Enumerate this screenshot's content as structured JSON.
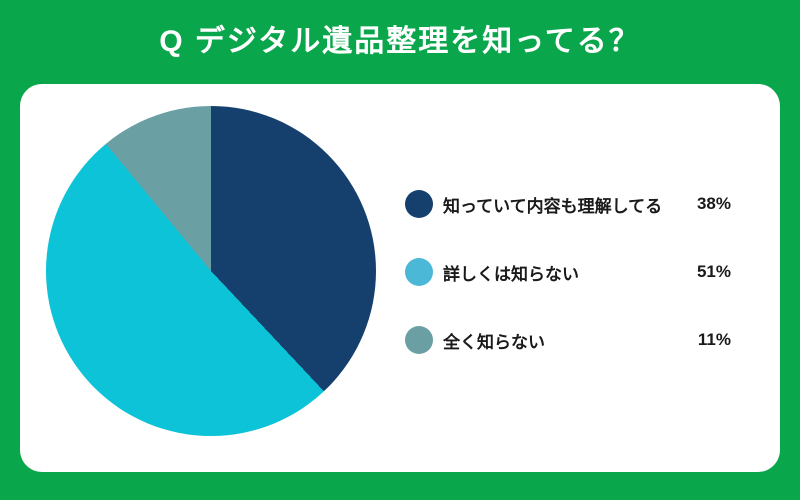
{
  "header": {
    "title": "Q デジタル遺品整理を知ってる？",
    "bg_color": "#0aa64b",
    "text_color": "#ffffff"
  },
  "card": {
    "bg_color": "#ffffff"
  },
  "chart_data": {
    "type": "pie",
    "title": "Q デジタル遺品整理を知ってる？",
    "start_angle_deg": 0,
    "direction": "clockwise",
    "total": 100,
    "legend_position": "right",
    "items": [
      {
        "label": "知っていて内容も理解してる",
        "value": 38,
        "value_label": "38%",
        "color": "#15406d",
        "legend_color": "#15406d"
      },
      {
        "label": "詳しくは知らない",
        "value": 51,
        "value_label": "51%",
        "color": "#0cc3d8",
        "legend_color": "#4bb8d8"
      },
      {
        "label": "全く知らない",
        "value": 11,
        "value_label": "11%",
        "color": "#6aa0a3",
        "legend_color": "#6aa0a3"
      }
    ]
  }
}
